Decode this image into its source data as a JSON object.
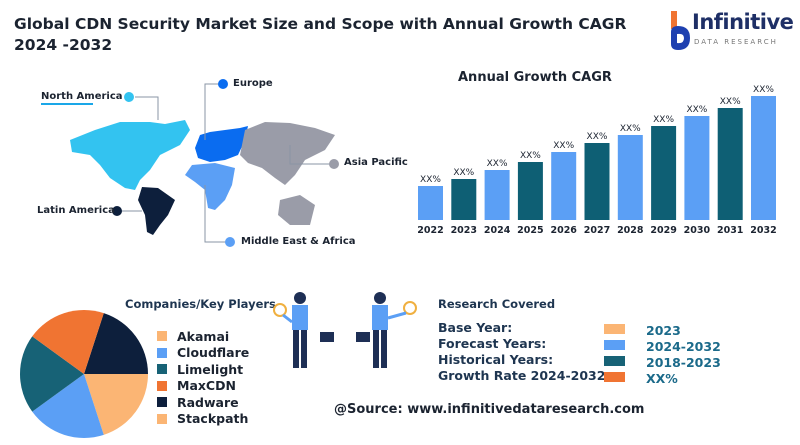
{
  "title": "Global CDN Security Market Size and Scope with Annual Growth CAGR 2024 -2032",
  "logo": {
    "brand": "Infinitive",
    "sub": "DATA RESEARCH"
  },
  "map": {
    "regions": [
      {
        "name": "North America",
        "color": "#33c3f0"
      },
      {
        "name": "Europe",
        "color": "#0a6cf0"
      },
      {
        "name": "Asia Pacific",
        "color": "#9a9ca8"
      },
      {
        "name": "Latin America",
        "color": "#0d1f3c"
      },
      {
        "name": "Middle East & Africa",
        "color": "#5b9ff5"
      }
    ]
  },
  "chart_data": [
    {
      "type": "bar",
      "title": "Annual Growth CAGR",
      "categories": [
        "2022",
        "2023",
        "2024",
        "2025",
        "2026",
        "2027",
        "2028",
        "2029",
        "2030",
        "2031",
        "2032"
      ],
      "values": [
        34,
        41,
        50,
        58,
        68,
        77,
        85,
        94,
        104,
        112,
        124
      ],
      "value_note": "relative bar heights (unlabeled scale)",
      "data_labels": [
        "XX%",
        "XX%",
        "XX%",
        "XX%",
        "XX%",
        "XX%",
        "XX%",
        "XX%",
        "XX%",
        "XX%",
        "XX%"
      ],
      "colors": [
        "#5b9ff5",
        "#0e5f74"
      ]
    },
    {
      "type": "pie",
      "title": "Companies/Key Players",
      "categories": [
        "Akamai",
        "Cloudflare",
        "Limelight",
        "MaxCDN",
        "Radware",
        "Stackpath"
      ],
      "colors": [
        "#fbb574",
        "#5b9ff5",
        "#176276",
        "#f07432",
        "#0d1f3c",
        "#fbb574"
      ],
      "slices": [
        {
          "label": "Radware",
          "value": 20,
          "color": "#0d1f3c"
        },
        {
          "label": "Akamai/Stackpath",
          "value": 20,
          "color": "#fbb574"
        },
        {
          "label": "Cloudflare",
          "value": 20,
          "color": "#5b9ff5"
        },
        {
          "label": "Limelight",
          "value": 20,
          "color": "#176276"
        },
        {
          "label": "MaxCDN",
          "value": 20,
          "color": "#f07432"
        }
      ]
    }
  ],
  "research": {
    "title": "Research Covered",
    "rows": [
      {
        "label": "Base Year:",
        "value": "2023",
        "color": "#fbb574"
      },
      {
        "label": "Forecast Years:",
        "value": "2024-2032",
        "color": "#5b9ff5"
      },
      {
        "label": "Historical Years:",
        "value": "2018-2023",
        "color": "#176276"
      },
      {
        "label": "Growth Rate 2024-2032:",
        "value": "XX%",
        "color": "#f07432"
      }
    ]
  },
  "source": "@Source: www.infinitivedataresearch.com"
}
